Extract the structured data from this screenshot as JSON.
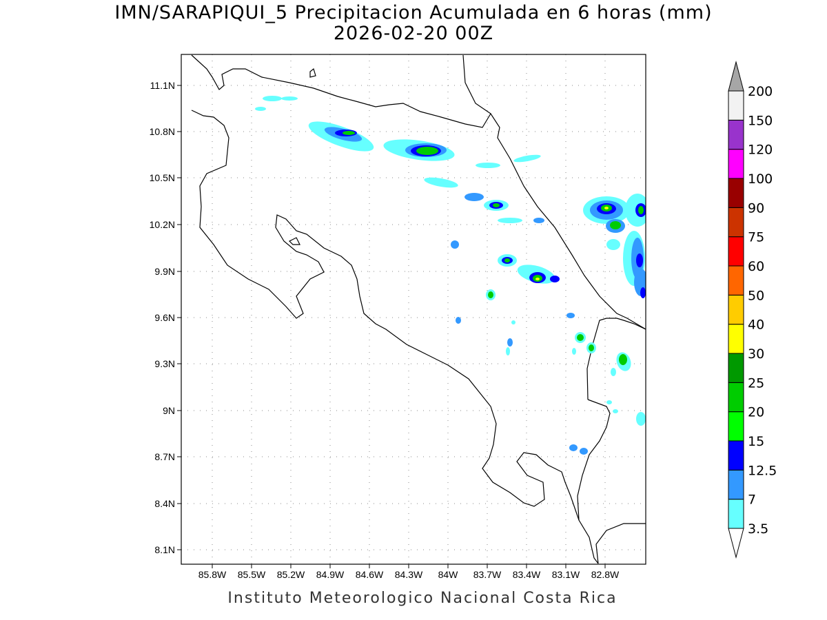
{
  "title": {
    "line1": "IMN/SARAPIQUI_5 Precipitacion Acumulada en 6 horas (mm)",
    "line2": "2026-02-20 00Z"
  },
  "footer": "Instituto Meteorologico Nacional Costa Rica",
  "map": {
    "region": "Costa Rica",
    "projection": "lat-lon",
    "lon_range": [
      -86.1,
      -82.5
    ],
    "lat_range": [
      8.0,
      11.3
    ],
    "lon_ticks": [
      "85.8W",
      "85.5W",
      "85.2W",
      "84.9W",
      "84.6W",
      "84.3W",
      "84W",
      "83.7W",
      "83.4W",
      "83.1W",
      "82.8W"
    ],
    "lat_ticks": [
      "11.1N",
      "10.8N",
      "10.5N",
      "10.2N",
      "9.9N",
      "9.6N",
      "9.3N",
      "9N",
      "8.7N",
      "8.4N",
      "8.1N"
    ],
    "grid": "dotted"
  },
  "colorbar": {
    "labels": [
      "3.5",
      "7",
      "12.5",
      "15",
      "20",
      "25",
      "30",
      "40",
      "50",
      "60",
      "75",
      "90",
      "100",
      "120",
      "150",
      "200"
    ],
    "colors": [
      "#66ffff",
      "#3399ff",
      "#0000ff",
      "#00ff00",
      "#00cc00",
      "#009900",
      "#ffff00",
      "#ffcc00",
      "#ff6600",
      "#ff0000",
      "#cc3300",
      "#990000",
      "#ff00ff",
      "#9933cc",
      "#f2f2f2",
      "#a6a6a6"
    ]
  }
}
